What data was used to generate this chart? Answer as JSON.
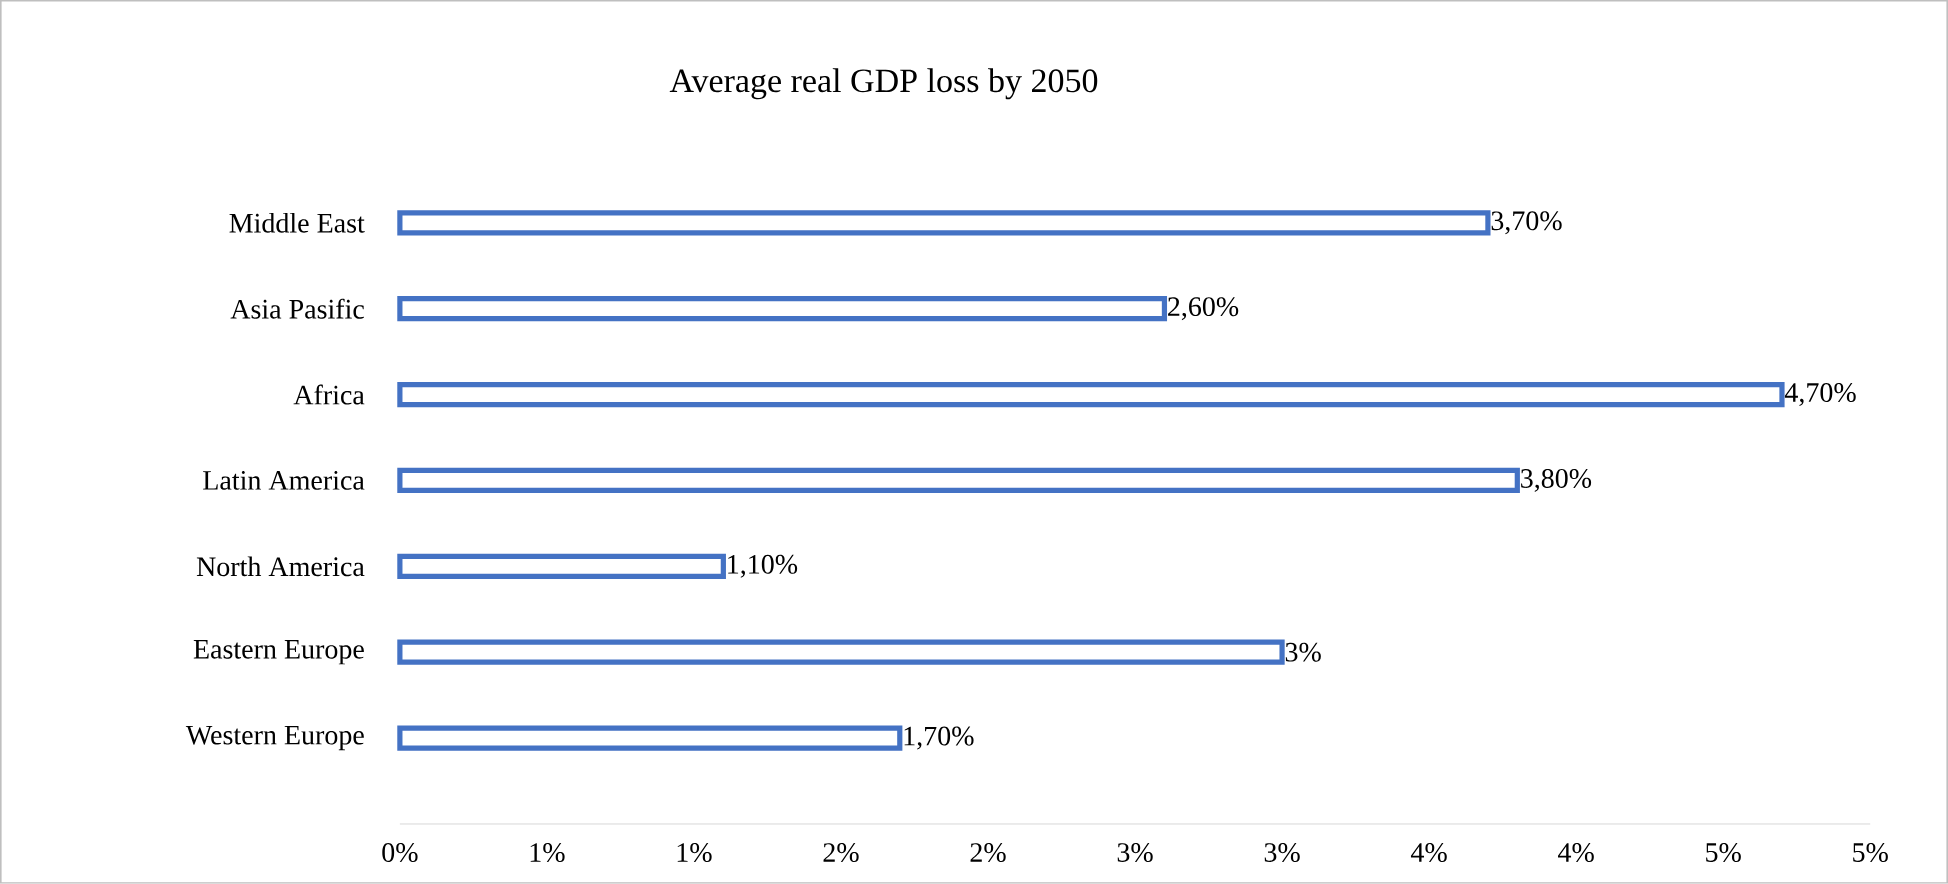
{
  "chart_data": {
    "type": "bar",
    "orientation": "horizontal",
    "title": "Average real GDP loss by 2050",
    "categories": [
      "Middle East",
      "Asia Pasific",
      "Africa",
      "Latin America",
      "North America",
      "Eastern Europe",
      "Western Europe"
    ],
    "values": [
      3.7,
      2.6,
      4.7,
      3.8,
      1.1,
      3,
      1.7
    ],
    "value_labels": [
      "3,70%",
      "2,60%",
      "4,70%",
      "3,80%",
      "1,10%",
      "3%",
      "1,70%"
    ],
    "color": "#4472c4",
    "xlim": [
      0,
      5
    ],
    "xticks": [
      {
        "value": 0,
        "label": "0%"
      },
      {
        "value": 0.5,
        "label": "1%"
      },
      {
        "value": 1,
        "label": "1%"
      },
      {
        "value": 1.5,
        "label": "2%"
      },
      {
        "value": 2,
        "label": "2%"
      },
      {
        "value": 2.5,
        "label": "3%"
      },
      {
        "value": 3,
        "label": "3%"
      },
      {
        "value": 3.5,
        "label": "4%"
      },
      {
        "value": 4,
        "label": "4%"
      },
      {
        "value": 4.5,
        "label": "5%"
      },
      {
        "value": 5,
        "label": "5%"
      }
    ]
  }
}
